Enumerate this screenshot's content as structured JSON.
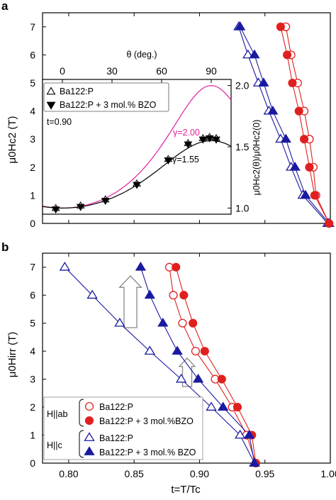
{
  "chart_data": [
    {
      "panel": "a",
      "type": "line",
      "ylabel_main": "μ0Hc2",
      "ylabel_unit": "(T)",
      "xlim": [
        0.78,
        1.0
      ],
      "ylim": [
        0,
        7.5
      ],
      "yticks": [
        "0",
        "1",
        "2",
        "3",
        "4",
        "5",
        "6",
        "7"
      ],
      "series": [
        {
          "name": "Ba122:P",
          "field": "H||c",
          "marker": "triangle-up",
          "fill": "open",
          "color": "#1a1aa0",
          "points": [
            [
              0.93,
              7.0
            ],
            [
              0.937,
              6.0
            ],
            [
              0.945,
              5.0
            ],
            [
              0.953,
              4.0
            ],
            [
              0.962,
              3.0
            ],
            [
              0.97,
              2.0
            ],
            [
              0.979,
              1.0
            ],
            [
              0.998,
              0.0
            ]
          ]
        },
        {
          "name": "Ba122:P + 3 mol.% BZO",
          "field": "H||c",
          "marker": "triangle-up",
          "fill": "filled",
          "color": "#1a1aa0",
          "points": [
            [
              0.931,
              7.0
            ],
            [
              0.942,
              6.0
            ],
            [
              0.949,
              5.0
            ],
            [
              0.956,
              4.0
            ],
            [
              0.966,
              3.0
            ],
            [
              0.973,
              2.0
            ],
            [
              0.981,
              1.0
            ],
            [
              0.999,
              0.0
            ]
          ]
        },
        {
          "name": "Ba122:P",
          "field": "H||ab",
          "marker": "circle",
          "fill": "open",
          "color": "#e0201e",
          "points": [
            [
              0.966,
              7.0
            ],
            [
              0.97,
              6.0
            ],
            [
              0.975,
              5.0
            ],
            [
              0.98,
              4.0
            ],
            [
              0.984,
              3.0
            ],
            [
              0.987,
              2.0
            ],
            [
              0.989,
              1.0
            ],
            [
              0.999,
              0.0
            ]
          ]
        },
        {
          "name": "Ba122:P + 3 mol.% BZO",
          "field": "H||ab",
          "marker": "circle",
          "fill": "filled",
          "color": "#e0201e",
          "points": [
            [
              0.962,
              7.0
            ],
            [
              0.967,
              6.0
            ],
            [
              0.971,
              5.0
            ],
            [
              0.976,
              4.0
            ],
            [
              0.98,
              3.0
            ],
            [
              0.984,
              2.0
            ],
            [
              0.988,
              1.0
            ],
            [
              0.999,
              0.0
            ]
          ]
        }
      ],
      "inset": {
        "xlabel": "θ (deg.)",
        "ylabel": "μ0Hc2(θ)/μ0Hc2(0)",
        "xlim": [
          -12,
          102
        ],
        "ylim": [
          0.95,
          2.05
        ],
        "xticks": [
          "0",
          "30",
          "60",
          "90"
        ],
        "yticks": [
          "1.0",
          "1.5",
          "2.0"
        ],
        "temperature_label": "t=0.90",
        "legend": [
          "Ba122:P",
          "Ba122:P + 3 mol.% BZO"
        ],
        "gamma_labels": [
          "γ=2.00",
          "γ=1.55"
        ],
        "curves": [
          {
            "gamma": 2.0,
            "color": "#e0219a"
          },
          {
            "gamma": 1.55,
            "color": "#000000"
          }
        ],
        "open_triangles": [
          [
            -4,
            1.0
          ],
          [
            11,
            1.02
          ],
          [
            26,
            1.07
          ],
          [
            45,
            1.2
          ],
          [
            64,
            1.4
          ],
          [
            76,
            1.53
          ],
          [
            85,
            1.57
          ],
          [
            89,
            1.58
          ],
          [
            93,
            1.57
          ]
        ],
        "filled_triangles_down": [
          [
            -4,
            0.99
          ],
          [
            11,
            1.01
          ],
          [
            26,
            1.06
          ],
          [
            45,
            1.19
          ],
          [
            64,
            1.39
          ],
          [
            76,
            1.52
          ],
          [
            85,
            1.56
          ],
          [
            89,
            1.57
          ],
          [
            93,
            1.56
          ]
        ]
      }
    },
    {
      "panel": "b",
      "type": "line",
      "xlabel": "t=T/Tc",
      "ylabel_main": "μ0Hirr",
      "ylabel_unit": "(T)",
      "xlim": [
        0.78,
        1.0
      ],
      "ylim": [
        0,
        7.5
      ],
      "xticks": [
        "0.80",
        "0.85",
        "0.90",
        "0.95",
        "1.00"
      ],
      "yticks": [
        "0",
        "1",
        "2",
        "3",
        "4",
        "5",
        "6",
        "7"
      ],
      "legend_groups": [
        {
          "label": "H||ab",
          "entries": [
            "Ba122:P",
            "Ba122:P + 3 mol.%BZO"
          ]
        },
        {
          "label": "H||c",
          "entries": [
            "Ba122:P",
            "Ba122:P + 3 mol.% BZO"
          ]
        }
      ],
      "series": [
        {
          "name": "Ba122:P",
          "field": "H||ab",
          "marker": "circle",
          "fill": "open",
          "color": "#e0201e",
          "points": [
            [
              0.877,
              7.0
            ],
            [
              0.88,
              6.0
            ],
            [
              0.887,
              5.0
            ],
            [
              0.897,
              4.0
            ],
            [
              0.912,
              3.0
            ],
            [
              0.925,
              2.0
            ],
            [
              0.936,
              1.0
            ],
            [
              0.943,
              0.0
            ]
          ]
        },
        {
          "name": "Ba122:P + 3 mol.%BZO",
          "field": "H||ab",
          "marker": "circle",
          "fill": "filled",
          "color": "#e0201e",
          "points": [
            [
              0.882,
              7.0
            ],
            [
              0.888,
              6.0
            ],
            [
              0.895,
              5.0
            ],
            [
              0.904,
              4.0
            ],
            [
              0.917,
              3.0
            ],
            [
              0.929,
              2.0
            ],
            [
              0.94,
              1.0
            ],
            [
              0.943,
              0.0
            ]
          ]
        },
        {
          "name": "Ba122:P",
          "field": "H||c",
          "marker": "triangle-up",
          "fill": "open",
          "color": "#1a1aa0",
          "points": [
            [
              0.797,
              7.0
            ],
            [
              0.818,
              6.0
            ],
            [
              0.839,
              5.0
            ],
            [
              0.862,
              4.0
            ],
            [
              0.886,
              3.0
            ],
            [
              0.909,
              2.0
            ],
            [
              0.931,
              1.0
            ],
            [
              0.942,
              0.0
            ]
          ]
        },
        {
          "name": "Ba122:P + 3 mol.% BZO",
          "field": "H||c",
          "marker": "triangle-up",
          "fill": "filled",
          "color": "#1a1aa0",
          "points": [
            [
              0.855,
              7.0
            ],
            [
              0.862,
              6.0
            ],
            [
              0.872,
              5.0
            ],
            [
              0.883,
              4.0
            ],
            [
              0.899,
              3.0
            ],
            [
              0.918,
              2.0
            ],
            [
              0.938,
              1.0
            ],
            [
              0.942,
              0.0
            ]
          ]
        }
      ]
    }
  ],
  "panel_labels": [
    "a",
    "b"
  ]
}
